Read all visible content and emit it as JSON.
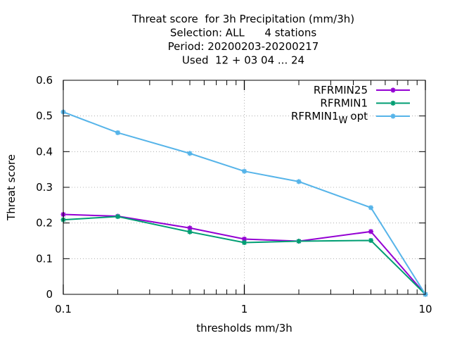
{
  "chart_data": {
    "type": "line",
    "title_lines": [
      "Threat score  for 3h Precipitation (mm/3h)",
      "Selection: ALL      4 stations",
      "Period: 20200203-20200217",
      "Used  12 + 03 04 ... 24"
    ],
    "xlabel": "thresholds mm/3h",
    "ylabel": "Threat score",
    "x_scale": "log",
    "xlim": [
      0.1,
      10
    ],
    "ylim": [
      0,
      0.6
    ],
    "x_ticks": [
      {
        "value": 0.1,
        "label": "0.1"
      },
      {
        "value": 1,
        "label": "1"
      },
      {
        "value": 10,
        "label": "10"
      }
    ],
    "y_ticks": [
      {
        "value": 0,
        "label": "0"
      },
      {
        "value": 0.1,
        "label": "0.1"
      },
      {
        "value": 0.2,
        "label": "0.2"
      },
      {
        "value": 0.3,
        "label": "0.3"
      },
      {
        "value": 0.4,
        "label": "0.4"
      },
      {
        "value": 0.5,
        "label": "0.5"
      },
      {
        "value": 0.6,
        "label": "0.6"
      }
    ],
    "grid": true,
    "legend_position": "top-right",
    "x": [
      0.1,
      0.2,
      0.5,
      1,
      2,
      5,
      10
    ],
    "series": [
      {
        "name": "RFRMIN25",
        "color": "#9400d3",
        "values": [
          0.224,
          0.219,
          0.186,
          0.155,
          0.149,
          0.176,
          0.0
        ]
      },
      {
        "name": "RFRMIN1",
        "name_sub": "",
        "color": "#009e73",
        "values": [
          0.209,
          0.218,
          0.175,
          0.145,
          0.149,
          0.151,
          0.0
        ]
      },
      {
        "name": "RFRMIN1",
        "name_sub": "W",
        "name_suffix": "opt",
        "color": "#56b4e9",
        "values": [
          0.511,
          0.453,
          0.395,
          0.345,
          0.316,
          0.243,
          0.0
        ]
      }
    ]
  }
}
